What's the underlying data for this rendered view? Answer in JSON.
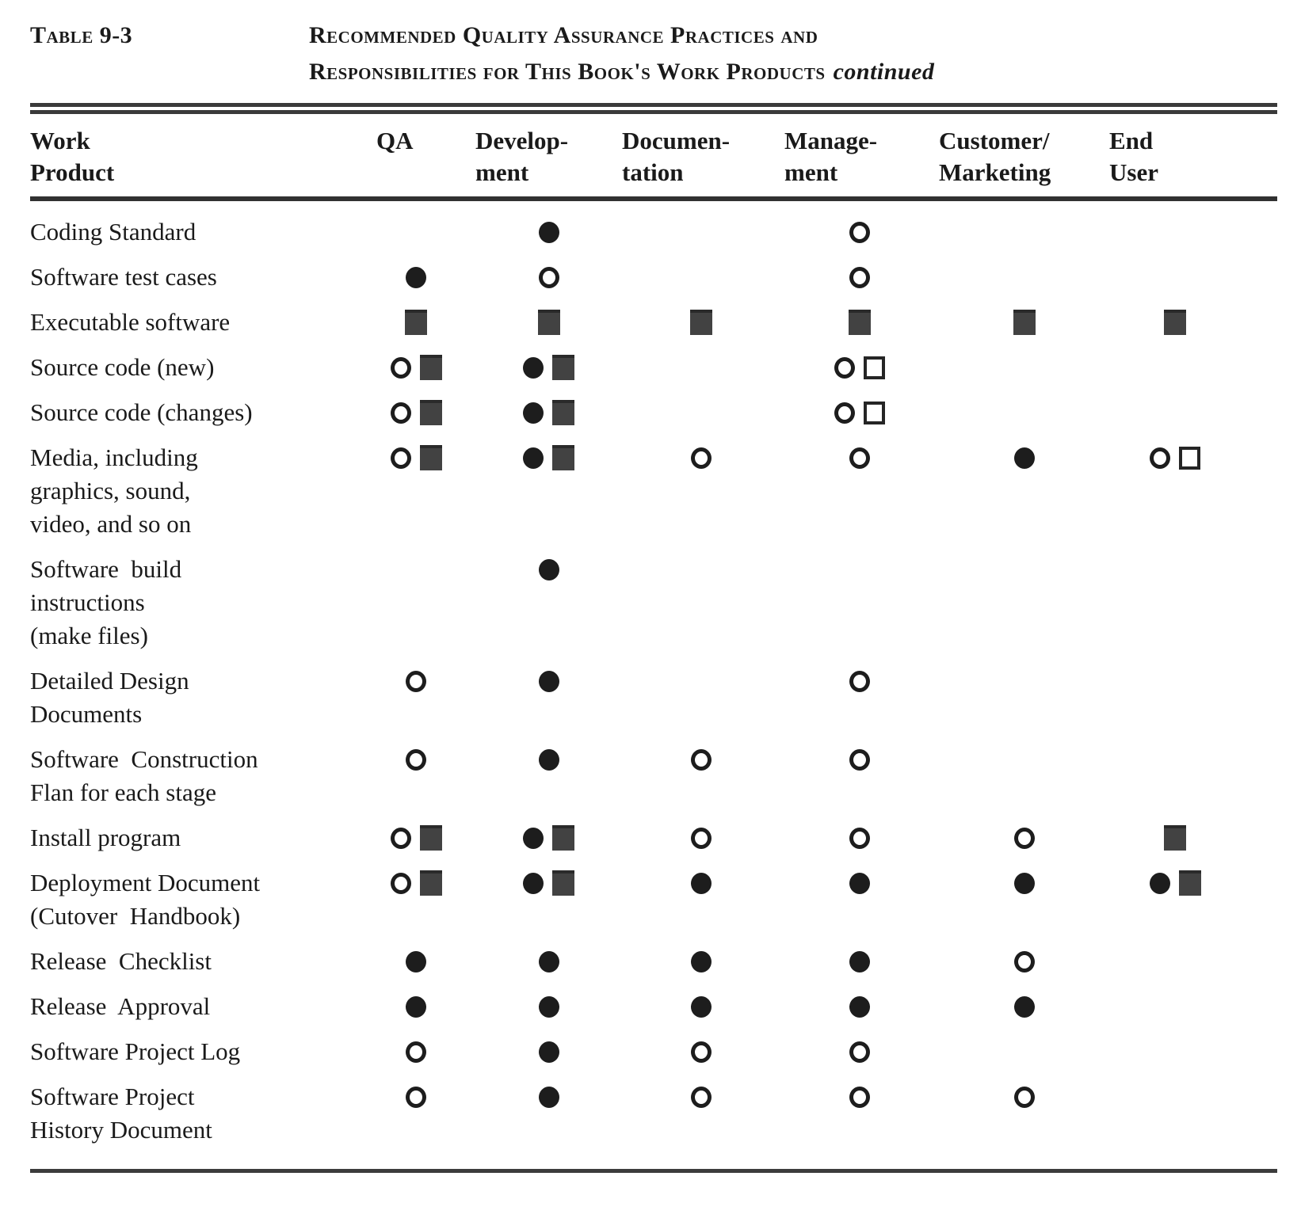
{
  "document": {
    "table_label": "Table 9-3",
    "title_line1": "Recommended Quality Assurance Practices and",
    "title_line2": "Responsibilities for This Book's Work Products",
    "continued_note": "continued"
  },
  "symbols": {
    "filled-circle": "●",
    "open-circle": "○",
    "filled-square": "■",
    "open-square": "□"
  },
  "table": {
    "columns": [
      {
        "key": "work-product",
        "line1": "Work",
        "line2": "Product"
      },
      {
        "key": "qa",
        "line1": "",
        "line2": "QA"
      },
      {
        "key": "development",
        "line1": "Develop-",
        "line2": "ment"
      },
      {
        "key": "documentation",
        "line1": "Documen-",
        "line2": "tation"
      },
      {
        "key": "management",
        "line1": "Manage-",
        "line2": "ment"
      },
      {
        "key": "customer-marketing",
        "line1": "Customer/",
        "line2": "Marketing"
      },
      {
        "key": "end-user",
        "line1": "End",
        "line2": "User"
      }
    ],
    "rows": [
      {
        "label": "Coding Standard",
        "cells": [
          [],
          [
            "filled-circle"
          ],
          [],
          [
            "open-circle"
          ],
          [],
          []
        ]
      },
      {
        "label": "Software test cases",
        "cells": [
          [
            "filled-circle"
          ],
          [
            "open-circle"
          ],
          [],
          [
            "open-circle"
          ],
          [],
          []
        ]
      },
      {
        "label": "Executable software",
        "cells": [
          [
            "filled-square"
          ],
          [
            "filled-square"
          ],
          [
            "filled-square"
          ],
          [
            "filled-square"
          ],
          [
            "filled-square"
          ],
          [
            "filled-square"
          ]
        ]
      },
      {
        "label": "Source code (new)",
        "cells": [
          [
            "open-circle",
            "filled-square"
          ],
          [
            "filled-circle",
            "filled-square"
          ],
          [],
          [
            "open-circle",
            "open-square"
          ],
          [],
          []
        ]
      },
      {
        "label": "Source code (changes)",
        "cells": [
          [
            "open-circle",
            "filled-square"
          ],
          [
            "filled-circle",
            "filled-square"
          ],
          [],
          [
            "open-circle",
            "open-square"
          ],
          [],
          []
        ]
      },
      {
        "label": "Media, including\ngraphics, sound,\nvideo, and so on",
        "cells": [
          [
            "open-circle",
            "filled-square"
          ],
          [
            "filled-circle",
            "filled-square"
          ],
          [
            "open-circle"
          ],
          [
            "open-circle"
          ],
          [
            "filled-circle"
          ],
          [
            "open-circle",
            "open-square"
          ]
        ]
      },
      {
        "label": "Software  build\ninstructions\n(make files)",
        "cells": [
          [],
          [
            "filled-circle"
          ],
          [],
          [],
          [],
          []
        ]
      },
      {
        "label": "Detailed Design\nDocuments",
        "cells": [
          [
            "open-circle"
          ],
          [
            "filled-circle"
          ],
          [],
          [
            "open-circle"
          ],
          [],
          []
        ]
      },
      {
        "label": "Software  Construction\nFlan for each stage",
        "cells": [
          [
            "open-circle"
          ],
          [
            "filled-circle"
          ],
          [
            "open-circle"
          ],
          [
            "open-circle"
          ],
          [],
          []
        ]
      },
      {
        "label": "Install program",
        "cells": [
          [
            "open-circle",
            "filled-square"
          ],
          [
            "filled-circle",
            "filled-square"
          ],
          [
            "open-circle"
          ],
          [
            "open-circle"
          ],
          [
            "open-circle"
          ],
          [
            "filled-square"
          ]
        ]
      },
      {
        "label": "Deployment Document\n(Cutover  Handbook)",
        "cells": [
          [
            "open-circle",
            "filled-square"
          ],
          [
            "filled-circle",
            "filled-square"
          ],
          [
            "filled-circle"
          ],
          [
            "filled-circle"
          ],
          [
            "filled-circle"
          ],
          [
            "filled-circle",
            "filled-square"
          ]
        ]
      },
      {
        "label": "Release  Checklist",
        "cells": [
          [
            "filled-circle"
          ],
          [
            "filled-circle"
          ],
          [
            "filled-circle"
          ],
          [
            "filled-circle"
          ],
          [
            "open-circle"
          ],
          []
        ]
      },
      {
        "label": "Release  Approval",
        "cells": [
          [
            "filled-circle"
          ],
          [
            "filled-circle"
          ],
          [
            "filled-circle"
          ],
          [
            "filled-circle"
          ],
          [
            "filled-circle"
          ],
          []
        ]
      },
      {
        "label": "Software Project Log",
        "cells": [
          [
            "open-circle"
          ],
          [
            "filled-circle"
          ],
          [
            "open-circle"
          ],
          [
            "open-circle"
          ],
          [],
          []
        ]
      },
      {
        "label": "Software Project\nHistory Document",
        "cells": [
          [
            "open-circle"
          ],
          [
            "filled-circle"
          ],
          [
            "open-circle"
          ],
          [
            "open-circle"
          ],
          [
            "open-circle"
          ],
          []
        ]
      }
    ]
  }
}
